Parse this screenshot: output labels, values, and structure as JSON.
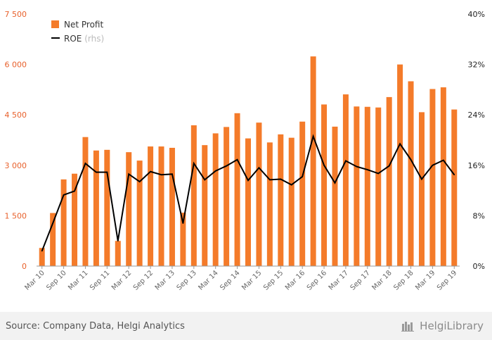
{
  "chart_data": {
    "type": "bar",
    "categories": [
      "Mar 10",
      "Jun 10",
      "Sep 10",
      "Dec 10",
      "Mar 11",
      "Jun 11",
      "Sep 11",
      "Dec 11",
      "Mar 12",
      "Jun 12",
      "Sep 12",
      "Dec 12",
      "Mar 13",
      "Jun 13",
      "Sep 13",
      "Dec 13",
      "Mar 14",
      "Jun 14",
      "Sep 14",
      "Dec 14",
      "Mar 15",
      "Jun 15",
      "Sep 15",
      "Dec 15",
      "Mar 16",
      "Jun 16",
      "Sep 16",
      "Dec 16",
      "Mar 17",
      "Jun 17",
      "Sep 17",
      "Dec 17",
      "Mar 18",
      "Jun 18",
      "Sep 18",
      "Dec 18",
      "Mar 19",
      "Jun 19",
      "Sep 19"
    ],
    "x_tick_labels": [
      "Mar 10",
      "Sep 10",
      "Mar 11",
      "Sep 11",
      "Mar 12",
      "Sep 12",
      "Mar 13",
      "Sep 13",
      "Mar 14",
      "Sep 14",
      "Mar 15",
      "Sep 15",
      "Mar 16",
      "Sep 16",
      "Mar 17",
      "Sep 17",
      "Mar 18",
      "Sep 18",
      "Mar 19",
      "Sep 19"
    ],
    "series": [
      {
        "name": "Net Profit",
        "kind": "bar",
        "axis": "left",
        "color": "#f47b2a",
        "values": [
          540,
          1580,
          2580,
          2750,
          3840,
          3440,
          3460,
          750,
          3390,
          3140,
          3560,
          3560,
          3520,
          1590,
          4190,
          3600,
          3950,
          4140,
          4550,
          3800,
          4270,
          3680,
          3920,
          3820,
          4300,
          6240,
          4810,
          4150,
          5110,
          4750,
          4740,
          4720,
          5030,
          6000,
          5500,
          4580,
          5270,
          5320,
          4660
        ]
      },
      {
        "name": "ROE",
        "name_suffix": "(rhs)",
        "kind": "line",
        "axis": "right",
        "color": "#000000",
        "values": [
          2.4,
          6.8,
          11.3,
          11.9,
          16.3,
          14.9,
          14.9,
          4.0,
          14.6,
          13.4,
          15.0,
          14.5,
          14.6,
          6.8,
          16.3,
          13.7,
          15.1,
          15.9,
          16.9,
          13.6,
          15.6,
          13.7,
          13.8,
          12.9,
          14.2,
          20.6,
          16.0,
          13.2,
          16.7,
          15.8,
          15.3,
          14.7,
          15.9,
          19.4,
          16.9,
          13.8,
          16.0,
          16.8,
          14.5
        ]
      }
    ],
    "y_left": {
      "min": 0,
      "max": 7500,
      "ticks": [
        "0",
        "1 500",
        "3 000",
        "4 500",
        "6 000",
        "7 500"
      ],
      "tick_values": [
        0,
        1500,
        3000,
        4500,
        6000,
        7500
      ],
      "color": "#e8612c"
    },
    "y_right": {
      "min": 0,
      "max": 40,
      "ticks": [
        "0%",
        "8%",
        "16%",
        "24%",
        "32%",
        "40%"
      ],
      "tick_values": [
        0,
        8,
        16,
        24,
        32,
        40
      ]
    },
    "grid": false,
    "legend_position": "top-left"
  },
  "footer": {
    "source": "Source: Company Data, Helgi Analytics",
    "brand": "HelgiLibrary"
  },
  "colors": {
    "footer_bg": "#f2f2f2",
    "bar": "#f47b2a",
    "line": "#000000"
  }
}
